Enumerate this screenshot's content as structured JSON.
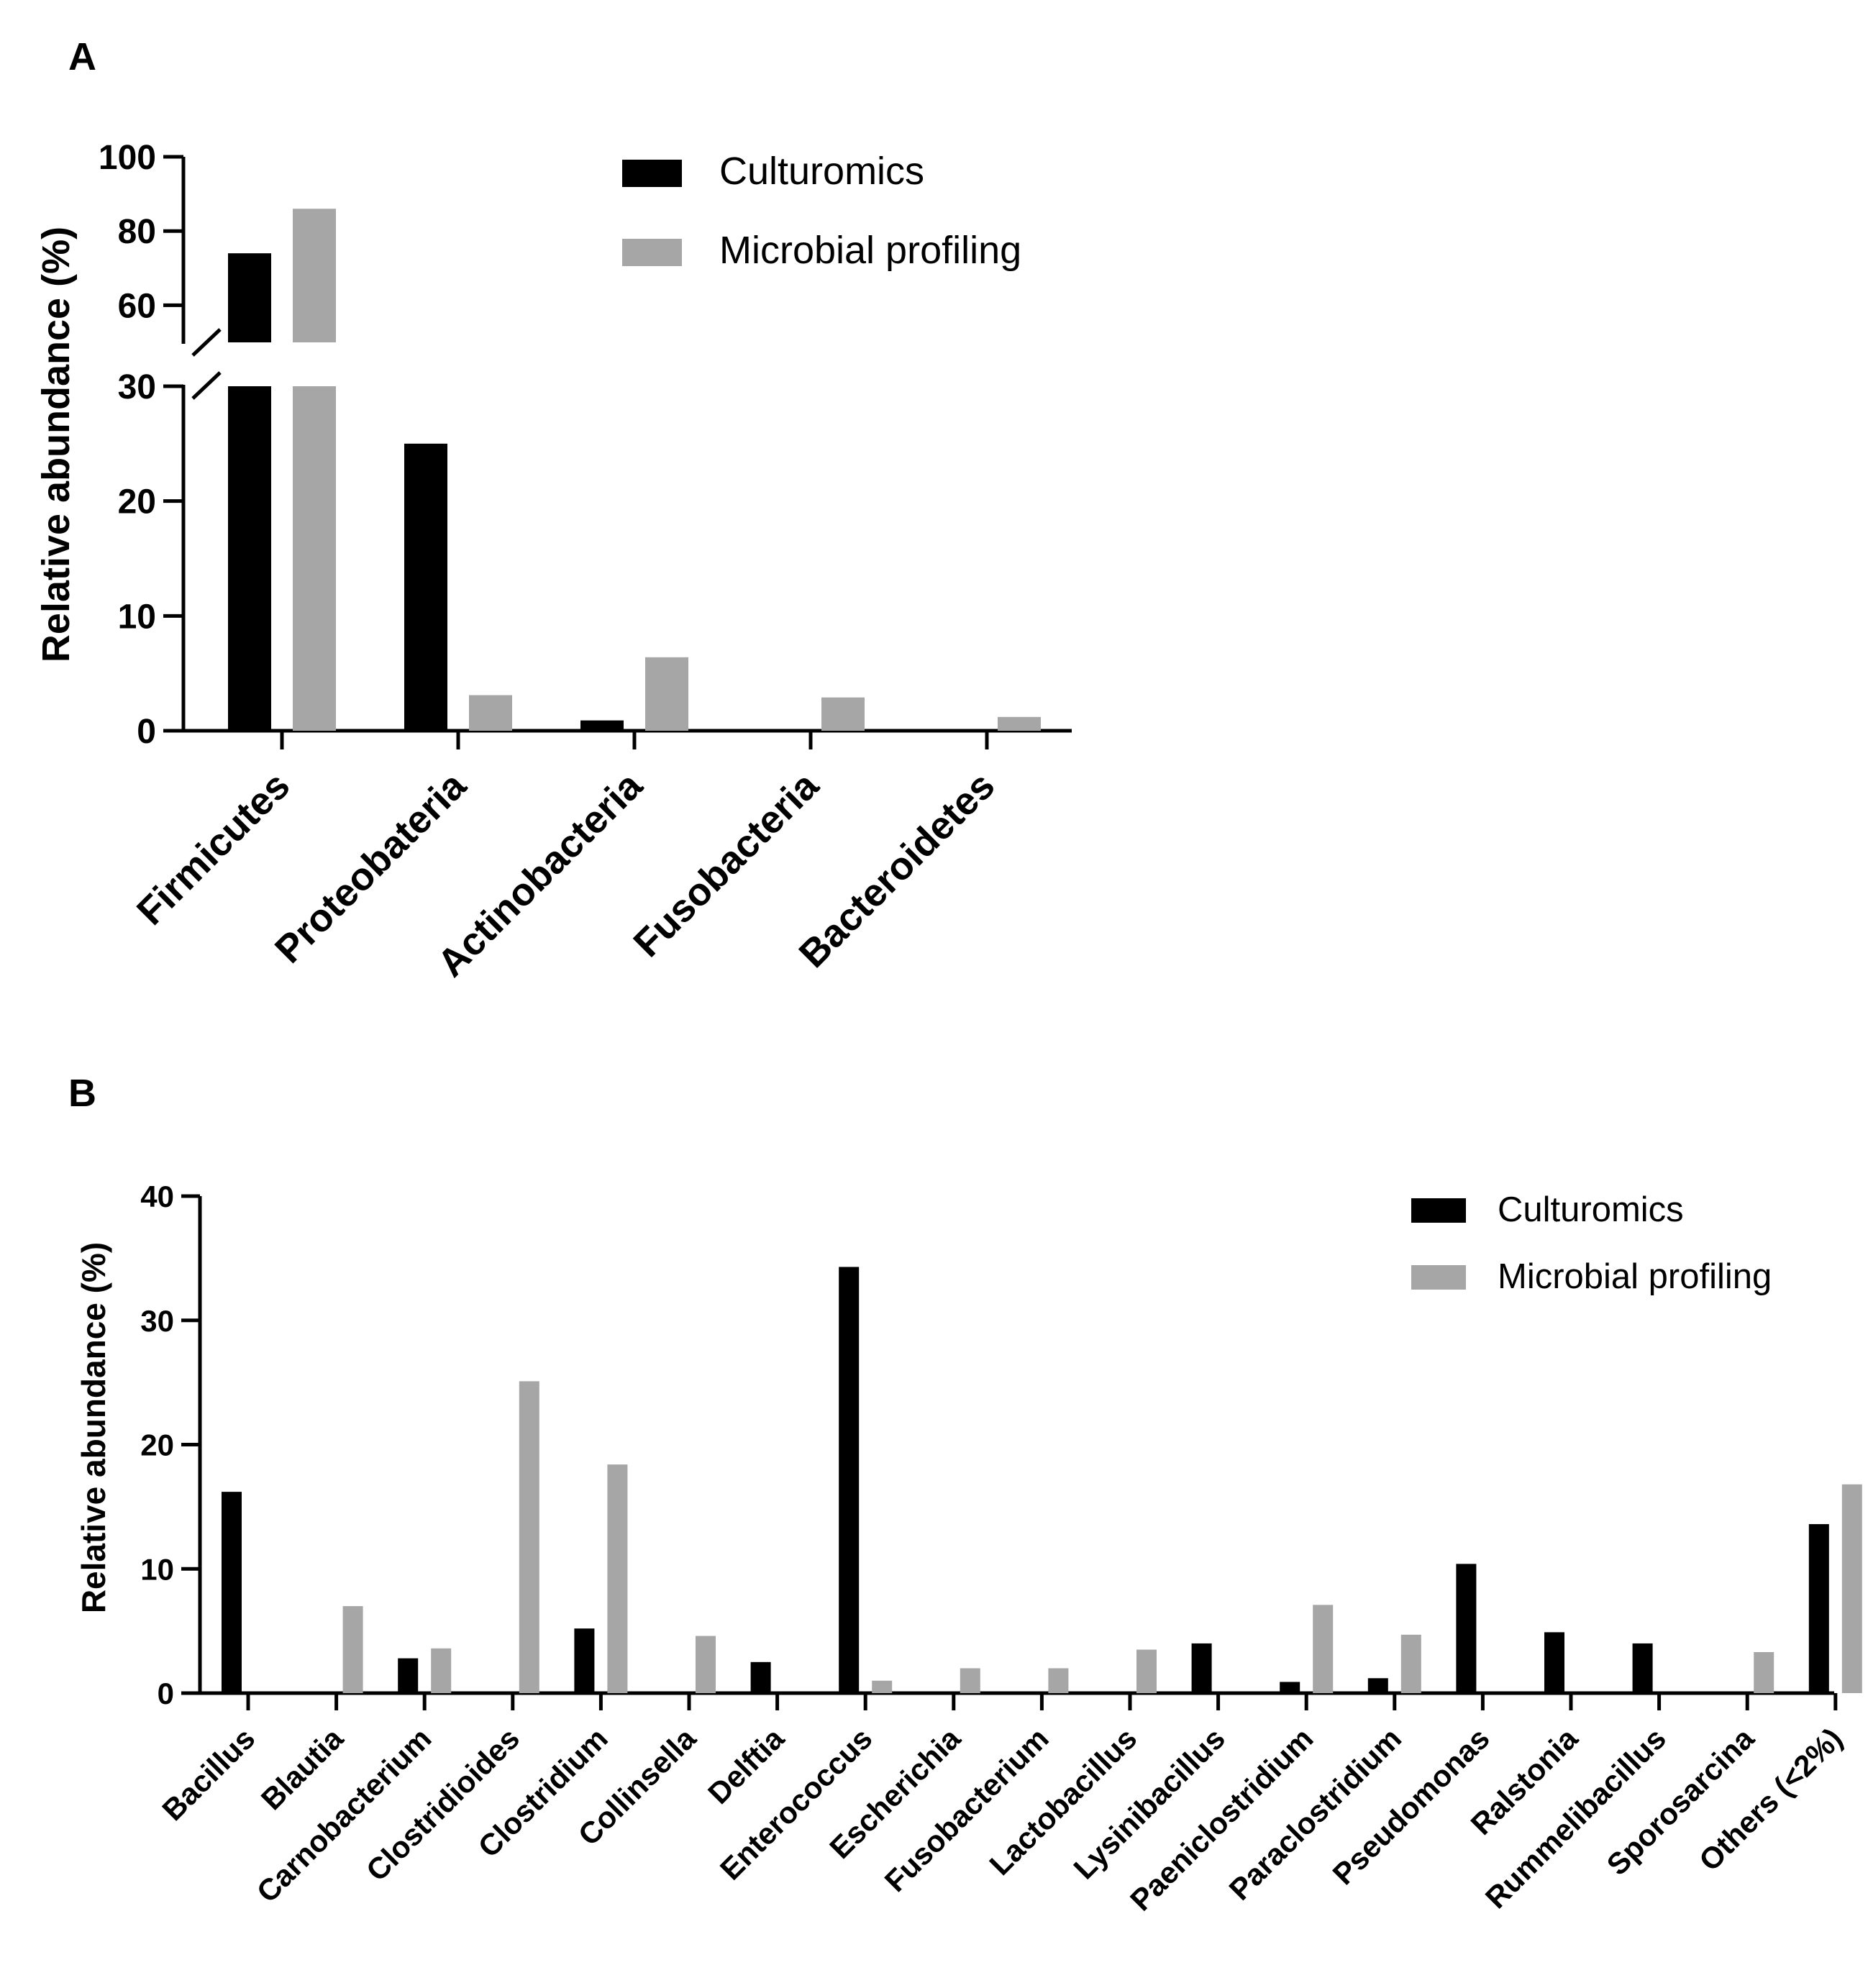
{
  "colors": {
    "culturomics": "#000000",
    "profiling": "#a6a6a6",
    "axis": "#000000"
  },
  "chart_data": [
    {
      "panel_label": "A",
      "type": "bar",
      "title": "",
      "xlabel": "",
      "ylabel": "Relative abundance (%)",
      "axis_break": {
        "lower": [
          0,
          30
        ],
        "upper": [
          50,
          100
        ]
      },
      "lower_ticks": [
        0,
        10,
        20,
        30
      ],
      "upper_ticks": [
        60,
        80,
        100
      ],
      "grid": false,
      "legend_position": "top-right",
      "categories": [
        "Firmicutes",
        "Proteobateria",
        "Actinobacteria",
        "Fusobacteria",
        "Bacteroidetes"
      ],
      "series": [
        {
          "name": "Culturomics",
          "values": [
            74,
            25,
            0.9,
            0,
            0
          ]
        },
        {
          "name": "Microbial profiling",
          "values": [
            86,
            3.1,
            6.4,
            2.9,
            1.2
          ]
        }
      ]
    },
    {
      "panel_label": "B",
      "type": "bar",
      "title": "",
      "xlabel": "",
      "ylabel": "Relative abundance (%)",
      "ylim": [
        0,
        40
      ],
      "ticks": [
        0,
        10,
        20,
        30,
        40
      ],
      "grid": false,
      "legend_position": "top-right",
      "categories": [
        "Bacillus",
        "Blautia",
        "Carnobacterium",
        "Clostridioides",
        "Clostridium",
        "Collinsella",
        "Delftia",
        "Enterococcus",
        "Escherichia",
        "Fusobacterium",
        "Lactobacillus",
        "Lysinibacillus",
        "Paeniclostridium",
        "Paraclostridium",
        "Pseudomonas",
        "Ralstonia",
        "Rummelibacillus",
        "Sporosarcina",
        "Others (<2%)"
      ],
      "series": [
        {
          "name": "Culturomics",
          "values": [
            16.2,
            0,
            2.8,
            0,
            5.2,
            0,
            2.5,
            34.3,
            0,
            0,
            0,
            4.0,
            0.9,
            1.2,
            10.4,
            4.9,
            4.0,
            0,
            13.6
          ]
        },
        {
          "name": "Microbial profiling",
          "values": [
            0,
            7.0,
            3.6,
            25.1,
            18.4,
            4.6,
            0,
            1.0,
            2.0,
            2.0,
            3.5,
            0,
            7.1,
            4.7,
            0,
            0,
            0,
            3.3,
            16.8
          ]
        }
      ]
    }
  ]
}
